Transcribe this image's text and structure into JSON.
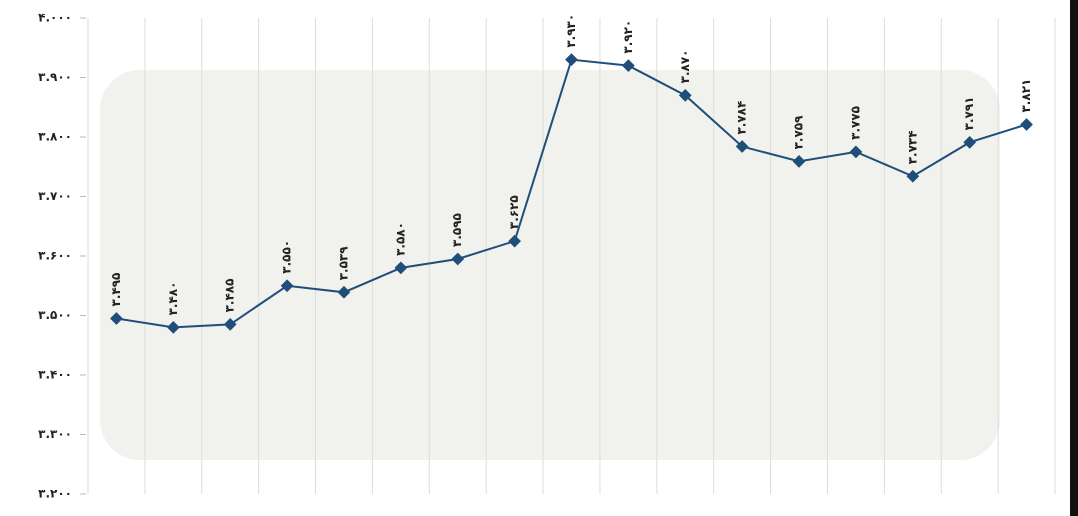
{
  "chart_data": {
    "type": "line",
    "categories": [
      null,
      null,
      null,
      null,
      null,
      null,
      null,
      null,
      null,
      null,
      null,
      null,
      null,
      null,
      null,
      null,
      null
    ],
    "series": [
      {
        "color": "#1f4e79",
        "values": [
          3495,
          3480,
          3485,
          3550,
          3539,
          3580,
          3595,
          3625,
          3930,
          3920,
          3870,
          3784,
          3759,
          3775,
          3734,
          3791,
          3821
        ],
        "value_labels": [
          "۳.۴۹۵",
          "۳.۴۸۰",
          "۳.۴۸۵",
          "۳.۵۵۰",
          "۳.۵۳۹",
          "۳.۵۸۰",
          "۳.۵۹۵",
          "۳.۶۲۵",
          "۳.۹۳۰",
          "۳.۹۲۰",
          "۳.۸۷۰",
          "۳.۷۸۴",
          "۳.۷۵۹",
          "۳.۷۷۵",
          "۳.۷۳۴",
          "۳.۷۹۱",
          "۳.۸۲۱"
        ]
      }
    ],
    "ylim": [
      3200,
      4000
    ],
    "yticks": [
      {
        "value": 3200,
        "label": "۳.۲۰۰"
      },
      {
        "value": 3300,
        "label": "۳.۳۰۰"
      },
      {
        "value": 3400,
        "label": "۳.۴۰۰"
      },
      {
        "value": 3500,
        "label": "۳.۵۰۰"
      },
      {
        "value": 3600,
        "label": "۳.۶۰۰"
      },
      {
        "value": 3700,
        "label": "۳.۷۰۰"
      },
      {
        "value": 3800,
        "label": "۳.۸۰۰"
      },
      {
        "value": 3900,
        "label": "۳.۹۰۰"
      },
      {
        "value": 4000,
        "label": "۴.۰۰۰"
      }
    ]
  }
}
